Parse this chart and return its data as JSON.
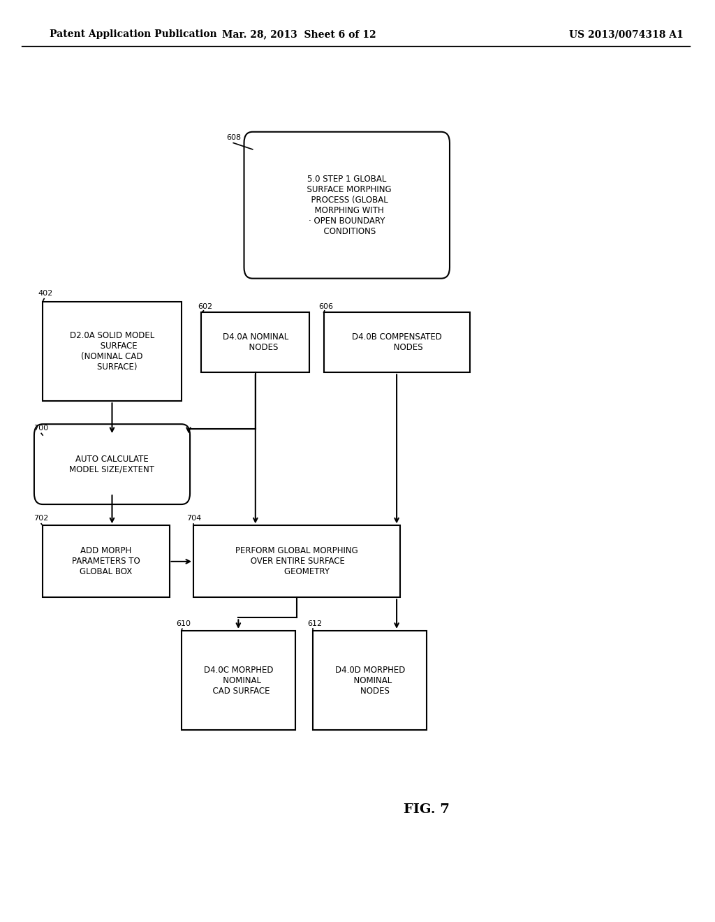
{
  "bg_color": "#ffffff",
  "header_left": "Patent Application Publication",
  "header_mid": "Mar. 28, 2013  Sheet 6 of 12",
  "header_right": "US 2013/0074318 A1",
  "fig_label": "FIG. 7"
}
